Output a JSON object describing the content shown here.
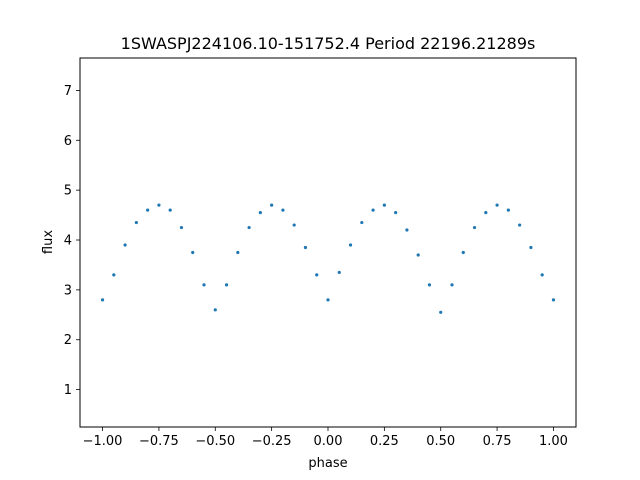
{
  "chart_data": {
    "type": "scatter",
    "title": "1SWASPJ224106.10-151752.4 Period 22196.21289s",
    "xlabel": "phase",
    "ylabel": "flux",
    "xlim": [
      -1.1,
      1.1
    ],
    "ylim": [
      0.25,
      7.65
    ],
    "xticks": [
      -1.0,
      -0.75,
      -0.5,
      -0.25,
      0.0,
      0.25,
      0.5,
      0.75,
      1.0
    ],
    "xtick_labels": [
      "−1.00",
      "−0.75",
      "−0.50",
      "−0.25",
      "0.00",
      "0.25",
      "0.50",
      "0.75",
      "1.00"
    ],
    "yticks": [
      1,
      2,
      3,
      4,
      5,
      6,
      7
    ],
    "ytick_labels": [
      "1",
      "2",
      "3",
      "4",
      "5",
      "6",
      "7"
    ],
    "grid": false,
    "marker_color": "#1f77b4",
    "series": [
      {
        "x": [
          -1.0,
          -0.95,
          -0.9,
          -0.85,
          -0.8,
          -0.75,
          -0.7,
          -0.65,
          -0.6,
          -0.55,
          -0.5,
          -0.45,
          -0.4,
          -0.35,
          -0.3,
          -0.25,
          -0.2,
          -0.15,
          -0.1,
          -0.05,
          0.0,
          0.05,
          0.1,
          0.15,
          0.2,
          0.25,
          0.3,
          0.35,
          0.4,
          0.45,
          0.5,
          0.55,
          0.6,
          0.65,
          0.7,
          0.75,
          0.8,
          0.85,
          0.9,
          0.95,
          1.0
        ],
        "y": [
          2.8,
          3.3,
          3.9,
          4.35,
          4.6,
          4.7,
          4.6,
          4.25,
          3.75,
          3.1,
          2.6,
          3.1,
          3.75,
          4.25,
          4.55,
          4.7,
          4.6,
          4.3,
          3.85,
          3.3,
          2.8,
          3.35,
          3.9,
          4.35,
          4.6,
          4.7,
          4.55,
          4.2,
          3.7,
          3.1,
          2.55,
          3.1,
          3.75,
          4.25,
          4.55,
          4.7,
          4.6,
          4.3,
          3.85,
          3.3,
          2.8
        ]
      }
    ]
  }
}
